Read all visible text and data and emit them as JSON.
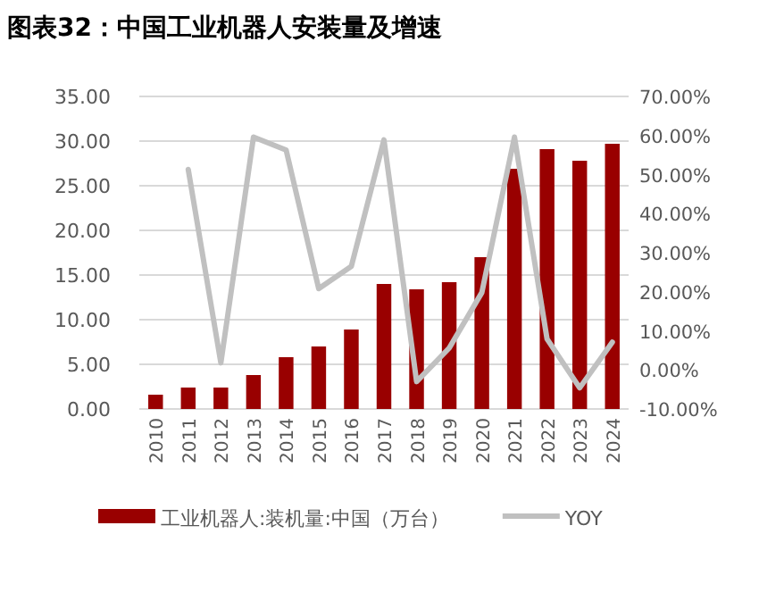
{
  "chart_data": {
    "type": "bar",
    "title": "图表32：中国工业机器人安装量及增速",
    "categories": [
      "2010",
      "2011",
      "2012",
      "2013",
      "2014",
      "2015",
      "2016",
      "2017",
      "2018",
      "2019",
      "2020",
      "2021",
      "2022",
      "2023",
      "2024"
    ],
    "series": [
      {
        "name": "工业机器人:装机量:中国（万台）",
        "color": "#990000",
        "values": [
          1.6,
          2.4,
          2.4,
          3.8,
          5.8,
          7.0,
          8.9,
          14.0,
          13.4,
          14.2,
          17.0,
          26.9,
          29.1,
          27.8,
          29.7
        ]
      },
      {
        "name": "YOY",
        "type": "line",
        "axis": "y2",
        "color": "#c0c0c0",
        "values": [
          null,
          51.3,
          1.8,
          59.6,
          56.3,
          20.8,
          26.5,
          58.9,
          -3.0,
          5.6,
          19.8,
          59.6,
          7.9,
          -4.6,
          7.1
        ]
      }
    ],
    "ylim": [
      0,
      35
    ],
    "yticks": [
      {
        "value": 0,
        "label": "0.00"
      },
      {
        "value": 5,
        "label": "5.00"
      },
      {
        "value": 10,
        "label": "10.00"
      },
      {
        "value": 15,
        "label": "15.00"
      },
      {
        "value": 20,
        "label": "20.00"
      },
      {
        "value": 25,
        "label": "25.00"
      },
      {
        "value": 30,
        "label": "30.00"
      },
      {
        "value": 35,
        "label": "35.00"
      }
    ],
    "y2lim": [
      -10,
      70
    ],
    "y2ticks": [
      {
        "value": -10,
        "label": "-10.00%"
      },
      {
        "value": 0,
        "label": "0.00%"
      },
      {
        "value": 10,
        "label": "10.00%"
      },
      {
        "value": 20,
        "label": "20.00%"
      },
      {
        "value": 30,
        "label": "30.00%"
      },
      {
        "value": 40,
        "label": "40.00%"
      },
      {
        "value": 50,
        "label": "50.00%"
      },
      {
        "value": 60,
        "label": "60.00%"
      },
      {
        "value": 70,
        "label": "70.00%"
      }
    ],
    "grid": "y",
    "legend": "bottom"
  }
}
